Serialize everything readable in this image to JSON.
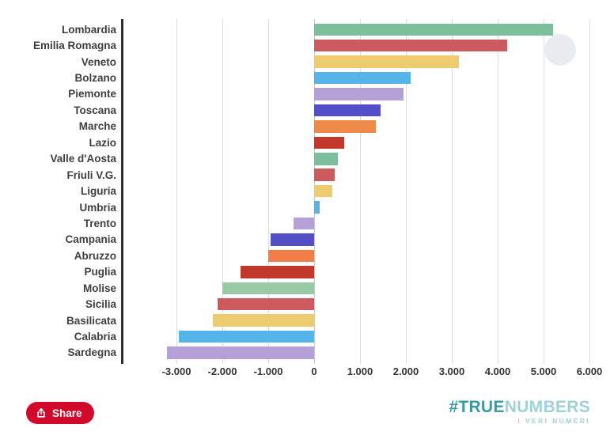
{
  "chart_data": {
    "type": "bar",
    "orientation": "horizontal",
    "title": "",
    "xlabel": "",
    "ylabel": "",
    "categories": [
      "Lombardia",
      "Emilia Romagna",
      "Veneto",
      "Bolzano",
      "Piemonte",
      "Toscana",
      "Marche",
      "Lazio",
      "Valle d'Aosta",
      "Friuli V.G.",
      "Liguria",
      "Umbria",
      "Trento",
      "Campania",
      "Abruzzo",
      "Puglia",
      "Molise",
      "Sicilia",
      "Basilicata",
      "Calabria",
      "Sardegna"
    ],
    "values": [
      5200,
      4200,
      3150,
      2100,
      1950,
      1450,
      1350,
      650,
      520,
      450,
      390,
      120,
      -450,
      -950,
      -1000,
      -1600,
      -2000,
      -2100,
      -2200,
      -2950,
      -3200
    ],
    "bar_colors": [
      "#7dbf9c",
      "#cd5a5e",
      "#edcb6f",
      "#56b5e8",
      "#b5a1d8",
      "#5350c7",
      "#f08a4b",
      "#c0392b",
      "#7dbf9c",
      "#cd5a5e",
      "#edcb6f",
      "#56b5e8",
      "#b5a1d8",
      "#5350c7",
      "#f07e49",
      "#c0392b",
      "#9ac9a5",
      "#cd5a5e",
      "#edcb6f",
      "#56b5e8",
      "#b5a1d8"
    ],
    "x_ticks": [
      -3000,
      -2000,
      -1000,
      0,
      1000,
      2000,
      3000,
      4000,
      5000,
      6000
    ],
    "x_tick_labels": [
      "-3.000",
      "-2.000",
      "-1.000",
      "0",
      "1.000",
      "2.000",
      "3.000",
      "4.000",
      "5.000",
      "6.000"
    ],
    "xlim": [
      -4100,
      6200
    ],
    "grid": "vertical",
    "legend": "none"
  },
  "footer": {
    "share_label": "Share",
    "brand_hash": "#TRUE",
    "brand_rest": "NUMBERS",
    "brand_tagline": "I VERI NUMERI"
  },
  "colors": {
    "share_button": "#d10a2c",
    "brand_teal": "#379ba6",
    "brand_teal_light": "#9fd2d7"
  }
}
